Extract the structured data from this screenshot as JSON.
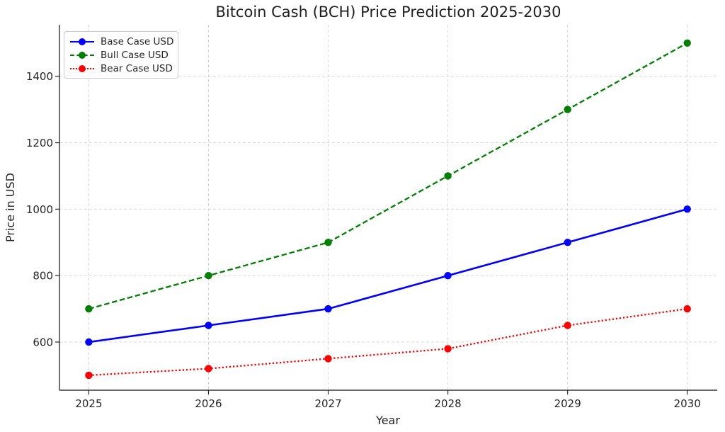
{
  "chart_data": {
    "type": "line",
    "title": "Bitcoin Cash (BCH) Price Prediction 2025-2030",
    "xlabel": "Year",
    "ylabel": "Price in USD",
    "x": [
      2025,
      2026,
      2027,
      2028,
      2029,
      2030
    ],
    "series": [
      {
        "name": "Base Case USD",
        "color": "#0000ff",
        "style": "solid",
        "values": [
          600,
          650,
          700,
          800,
          900,
          1000
        ]
      },
      {
        "name": "Bull Case USD",
        "color": "#008000",
        "style": "dashed",
        "values": [
          700,
          800,
          900,
          1100,
          1300,
          1500
        ]
      },
      {
        "name": "Bear Case USD",
        "color": "#ff0000",
        "style": "dotted",
        "values": [
          500,
          520,
          550,
          580,
          650,
          700
        ]
      }
    ],
    "yticks": [
      600,
      800,
      1000,
      1200,
      1400
    ],
    "xlim": [
      2024.755,
      2030.25
    ],
    "ylim": [
      455,
      1555
    ],
    "grid": true,
    "grid_style": "dashed",
    "legend_position": "upper left",
    "colors": {
      "grid": "#d9d9d9",
      "spine": "#333333",
      "tick": "#262626",
      "text": "#262626"
    }
  }
}
